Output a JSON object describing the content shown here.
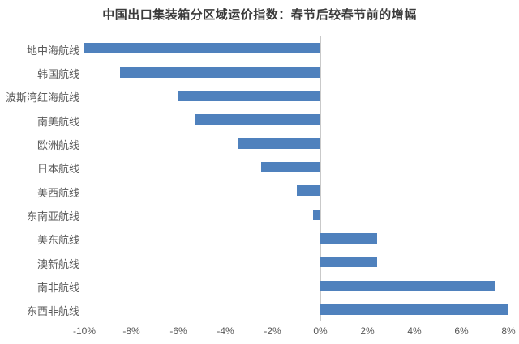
{
  "title": "中国出口集装箱分区域运价指数：春节后较春节前的增幅",
  "colors": {
    "bar": "#4f81bd",
    "axis_line": "#c9c9c9",
    "label_text": "#595959",
    "title_text": "#3b3b3b",
    "background": "#ffffff"
  },
  "chart_data": {
    "type": "bar",
    "orientation": "horizontal",
    "title": "中国出口集装箱分区域运价指数：春节后较春节前的增幅",
    "categories": [
      "地中海航线",
      "韩国航线",
      "波斯湾红海航线",
      "南美航线",
      "欧洲航线",
      "日本航线",
      "美西航线",
      "东南亚航线",
      "美东航线",
      "澳新航线",
      "南非航线",
      "东西非航线"
    ],
    "values": [
      -10.0,
      -8.5,
      -6.0,
      -5.3,
      -3.5,
      -2.5,
      -1.0,
      -0.3,
      2.4,
      2.4,
      7.4,
      8.0
    ],
    "unit": "%",
    "xlabel": "",
    "ylabel": "",
    "xlim": [
      -10,
      8
    ],
    "x_tick_step": 2,
    "x_ticks": [
      -10,
      -8,
      -6,
      -4,
      -2,
      0,
      2,
      4,
      6,
      8
    ],
    "x_tick_labels": [
      "-10%",
      "-8%",
      "-6%",
      "-4%",
      "-2%",
      "0%",
      "2%",
      "4%",
      "6%",
      "8%"
    ],
    "grid": false,
    "legend": false
  }
}
